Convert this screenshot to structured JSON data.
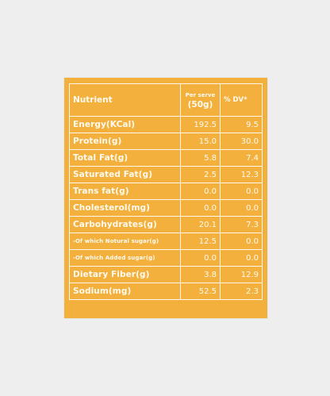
{
  "table": {
    "headers": {
      "nutrient": "Nutrient",
      "per_serve_line1": "Per serve",
      "per_serve_line2": "(50g)",
      "dv": "% DV*"
    },
    "rows": [
      {
        "name": "Energy(KCal)",
        "serve": "192.5",
        "dv": "9.5",
        "sub": false
      },
      {
        "name": "Protein(g)",
        "serve": "15.0",
        "dv": "30.0",
        "sub": false
      },
      {
        "name": "Total Fat(g)",
        "serve": "5.8",
        "dv": "7.4",
        "sub": false
      },
      {
        "name": "Saturated Fat(g)",
        "serve": "2.5",
        "dv": "12.3",
        "sub": false
      },
      {
        "name": "Trans fat(g)",
        "serve": "0.0",
        "dv": "0.0",
        "sub": false
      },
      {
        "name": "Cholesterol(mg)",
        "serve": "0.0",
        "dv": "0.0",
        "sub": false
      },
      {
        "name": "Carbohydrates(g)",
        "serve": "20.1",
        "dv": "7.3",
        "sub": false
      },
      {
        "name": "-Of which Notural sugar(g)",
        "serve": "12.5",
        "dv": "0.0",
        "sub": true
      },
      {
        "name": "-Of which Added sugar(g)",
        "serve": "0.0",
        "dv": "0.0",
        "sub": true
      },
      {
        "name": "Dietary Fiber(g)",
        "serve": "3.8",
        "dv": "12.9",
        "sub": false
      },
      {
        "name": "Sodium(mg)",
        "serve": "52.5",
        "dv": "2.3",
        "sub": false
      }
    ]
  },
  "colors": {
    "panel": "#f3b03c",
    "background": "#eeeeef",
    "text": "#fffaf0"
  }
}
